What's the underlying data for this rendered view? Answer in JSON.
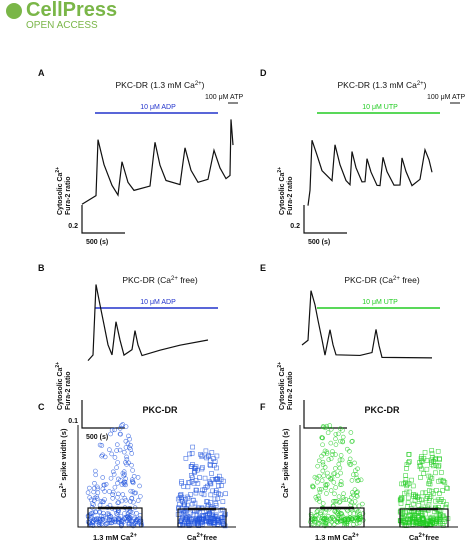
{
  "header": {
    "brand": "CellPress",
    "tagline": "OPEN ACCESS"
  },
  "panels": [
    {
      "letter": "A",
      "title": [
        "PKC-DR (1.3 mM Ca",
        "2+",
        ")"
      ],
      "stimulus": "10 μM ADP",
      "stimulus_color": "#2233cc",
      "extra": "100 μM ATP",
      "ylabel": [
        "Cytosolic Ca",
        "2+",
        "Fura-2 ratio"
      ],
      "scale_y": "0.2",
      "scale_x": "500 (s)"
    },
    {
      "letter": "D",
      "title": [
        "PKC-DR (1.3 mM Ca",
        "2+",
        ")"
      ],
      "stimulus": "10 μM UTP",
      "stimulus_color": "#22cc22",
      "extra": "100 μM ATP",
      "ylabel": [
        "Cytosolic Ca",
        "2+",
        "Fura-2 ratio"
      ],
      "scale_y": "0.2",
      "scale_x": "500 (s)"
    },
    {
      "letter": "B",
      "title": [
        "PKC-DR (Ca",
        "2+",
        " free)"
      ],
      "stimulus": "10 μM ADP",
      "stimulus_color": "#2233cc",
      "ylabel": [
        "Cytosolic Ca",
        "2+",
        "Fura-2 ratio"
      ],
      "scale_y": "0.1",
      "scale_x": "500 (s)"
    },
    {
      "letter": "E",
      "title": [
        "PKC-DR (Ca",
        "2+",
        " free)"
      ],
      "stimulus": "10 μM UTP",
      "stimulus_color": "#22cc22",
      "ylabel": [
        "Cytosolic Ca",
        "2+",
        "Fura-2 ratio"
      ]
    }
  ],
  "summaries": [
    {
      "letter": "C",
      "title": "PKC-DR",
      "ylabel": [
        "Ca",
        "2+",
        " spike width (s)"
      ],
      "categories": [
        [
          "1.3 mM Ca",
          "2+"
        ],
        [
          "Ca",
          "2+",
          "free"
        ]
      ],
      "color": "#2255dd"
    },
    {
      "letter": "F",
      "title": "PKC-DR",
      "ylabel": [
        "Ca",
        "2+",
        " spike width (s)"
      ],
      "categories": [
        [
          "1.3 mM Ca",
          "2+"
        ],
        [
          "Ca",
          "2+",
          "free"
        ]
      ],
      "color": "#22cc22"
    }
  ]
}
